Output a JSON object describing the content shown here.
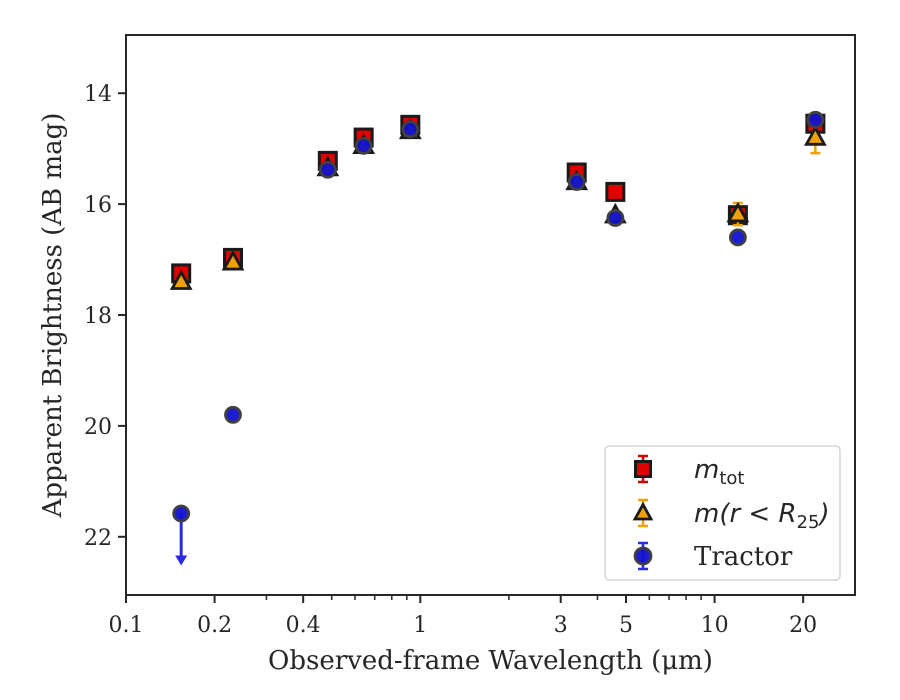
{
  "chart_data": {
    "type": "scatter",
    "xlabel": "Observed-frame Wavelength (μm)",
    "ylabel": "Apparent Brightness (AB mag)",
    "x_scale": "log",
    "xlim": [
      0.1,
      30
    ],
    "ylim": [
      23.05,
      12.95
    ],
    "y_inverted": true,
    "x_ticks": [
      0.1,
      0.2,
      0.4,
      1,
      3,
      5,
      10,
      20
    ],
    "x_tick_labels": [
      "0.1",
      "0.2",
      "0.4",
      "1",
      "3",
      "5",
      "10",
      "20"
    ],
    "y_ticks": [
      14,
      16,
      18,
      20,
      22
    ],
    "y_tick_labels": [
      "14",
      "16",
      "18",
      "20",
      "22"
    ],
    "grid": false,
    "legend_position": "lower-right",
    "series": [
      {
        "name": "m_tot",
        "legend_label": {
          "base": "m",
          "sub": "tot"
        },
        "marker": "square",
        "color": "#e00000",
        "edge_color": "#1a1a1a",
        "errorbar_color": "#d40000",
        "x": [
          0.154,
          0.231,
          0.485,
          0.642,
          0.925,
          3.4,
          4.6,
          12.0,
          22.0
        ],
        "y": [
          17.25,
          16.97,
          15.22,
          14.8,
          14.57,
          15.43,
          15.78,
          16.2,
          14.55
        ]
      },
      {
        "name": "m(r < R25)",
        "legend_label": {
          "base": "m(r < R",
          "sub": "25",
          "tail": ")"
        },
        "marker": "triangle",
        "color": "#f0a000",
        "edge_color": "#1a1a1a",
        "errorbar_color": "#f0a000",
        "x": [
          0.154,
          0.231,
          0.485,
          0.642,
          0.925,
          3.4,
          4.6,
          12.0,
          22.0
        ],
        "y": [
          17.4,
          17.05,
          15.35,
          14.95,
          14.68,
          15.6,
          16.2,
          16.18,
          14.8
        ],
        "yerr": [
          0.05,
          0.05,
          0.03,
          0.03,
          0.03,
          0.03,
          0.05,
          0.2,
          0.28
        ]
      },
      {
        "name": "Tractor",
        "marker": "circle",
        "color": "#1010d0",
        "edge_color": "#404040",
        "errorbar_color": "#2a2ae0",
        "x": [
          0.154,
          0.231,
          0.485,
          0.642,
          0.925,
          3.4,
          4.6,
          12.0,
          22.0
        ],
        "y": [
          21.58,
          19.8,
          15.38,
          14.95,
          14.65,
          15.6,
          16.25,
          16.6,
          14.48
        ],
        "upper_limit": [
          true,
          false,
          false,
          false,
          false,
          false,
          false,
          false,
          false
        ]
      }
    ]
  }
}
